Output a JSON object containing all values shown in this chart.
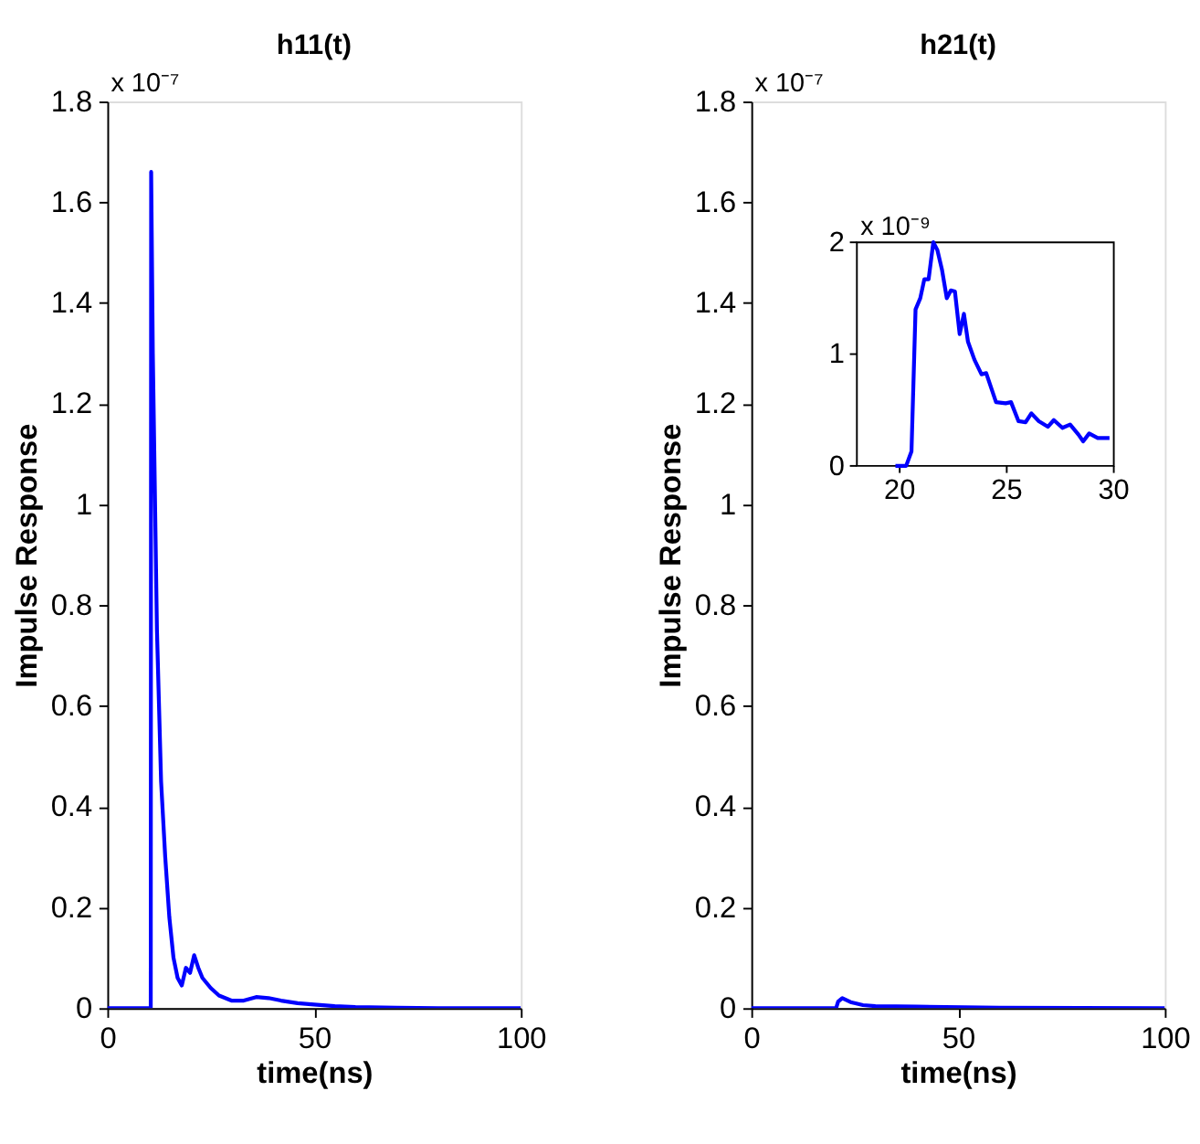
{
  "chart_data": [
    {
      "type": "line",
      "title": "h11(t)",
      "xlabel": "time(ns)",
      "ylabel": "Impulse Response",
      "annotations": [
        "x 10⁻⁷"
      ],
      "grid": false,
      "xlim": [
        0,
        100
      ],
      "xticks": [
        0,
        50,
        100
      ],
      "ylim": [
        0,
        1.8
      ],
      "yticks": [
        0,
        0.2,
        0.4,
        0.6,
        0.8,
        1,
        1.2,
        1.4,
        1.6,
        1.8
      ],
      "series": [
        {
          "color": "#0000ff",
          "x": [
            0,
            10.5,
            10.6,
            11,
            12,
            13,
            14,
            15,
            16,
            17,
            18,
            19,
            20,
            21,
            22,
            23,
            25,
            27,
            30,
            33,
            36,
            39,
            42,
            46,
            50,
            55,
            60,
            70,
            80,
            100
          ],
          "values": [
            0,
            0,
            1.66,
            1.3,
            0.75,
            0.45,
            0.3,
            0.18,
            0.1,
            0.06,
            0.045,
            0.08,
            0.07,
            0.105,
            0.08,
            0.06,
            0.04,
            0.025,
            0.015,
            0.015,
            0.022,
            0.02,
            0.015,
            0.01,
            0.007,
            0.004,
            0.002,
            0.001,
            0,
            0
          ]
        }
      ]
    },
    {
      "type": "line",
      "title": "h21(t)",
      "xlabel": "time(ns)",
      "ylabel": "Impulse Response",
      "annotations": [
        "x 10⁻⁷"
      ],
      "grid": false,
      "xlim": [
        0,
        100
      ],
      "xticks": [
        0,
        50,
        100
      ],
      "ylim": [
        0,
        1.8
      ],
      "yticks": [
        0,
        0.2,
        0.4,
        0.6,
        0.8,
        1,
        1.2,
        1.4,
        1.6,
        1.8
      ],
      "series": [
        {
          "color": "#0000ff",
          "x": [
            0,
            20.5,
            21,
            22,
            24,
            27,
            30,
            40,
            60,
            100
          ],
          "values": [
            0,
            0,
            0.013,
            0.02,
            0.012,
            0.006,
            0.004,
            0.003,
            0.001,
            0
          ]
        }
      ]
    },
    {
      "type": "line",
      "annotations": [
        "x 10⁻⁹"
      ],
      "grid": false,
      "xlim": [
        18,
        30
      ],
      "xticks": [
        20,
        25,
        30
      ],
      "ylim": [
        0,
        2
      ],
      "yticks": [
        0,
        1,
        2
      ],
      "series": [
        {
          "color": "#0000ff",
          "x": [
            19.8,
            20.3,
            20.55,
            20.74,
            20.96,
            21.15,
            21.35,
            21.57,
            21.76,
            21.98,
            22.2,
            22.39,
            22.58,
            22.8,
            23.0,
            23.19,
            23.49,
            23.82,
            24.04,
            24.5,
            24.95,
            25.2,
            25.55,
            25.88,
            26.15,
            26.5,
            26.92,
            27.2,
            27.6,
            27.96,
            28.35,
            28.57,
            28.85,
            29.25,
            29.8
          ],
          "values": [
            0,
            0,
            0.13,
            1.4,
            1.5,
            1.67,
            1.67,
            2.0,
            1.93,
            1.75,
            1.5,
            1.57,
            1.56,
            1.18,
            1.36,
            1.11,
            0.95,
            0.82,
            0.83,
            0.57,
            0.56,
            0.57,
            0.4,
            0.39,
            0.47,
            0.4,
            0.35,
            0.41,
            0.34,
            0.37,
            0.28,
            0.22,
            0.29,
            0.25,
            0.25
          ]
        }
      ]
    }
  ]
}
